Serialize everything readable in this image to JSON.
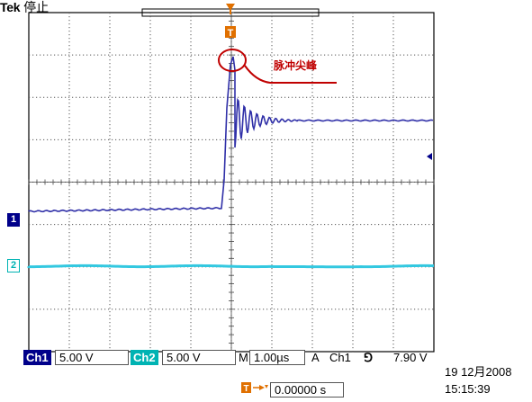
{
  "header": {
    "brand": "Tek",
    "status": "停止"
  },
  "annotation": {
    "text": "脉冲尖峰"
  },
  "markers": {
    "ch1": "1",
    "ch2": "2"
  },
  "readouts": {
    "ch1_label": "Ch1",
    "ch1_scale": "5.00 V",
    "ch2_label": "Ch2",
    "ch2_scale": "5.00 V",
    "timebase_label": "M",
    "timebase": "1.00µs",
    "trigger_mode": "A",
    "trigger_source": "Ch1",
    "trigger_slope": "⅁",
    "trigger_level": "7.90 V",
    "trigger_position_value": "0.00000 s"
  },
  "timestamp": {
    "date": "19 12月2008",
    "time": "15:15:39"
  },
  "colors": {
    "ch1": "#3030a8",
    "ch2": "#33c8e0",
    "annotation": "#c00000",
    "trigger": "#e07000",
    "label_bg": "#00008a"
  }
}
